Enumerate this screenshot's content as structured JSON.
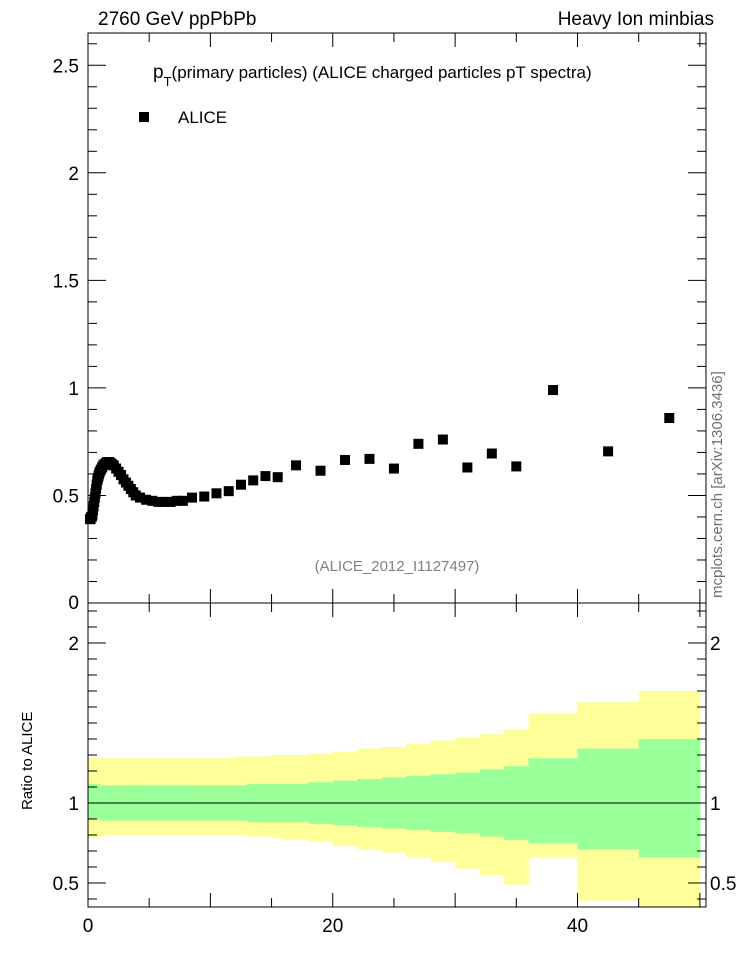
{
  "header": {
    "left": "2760 GeV ppPbPb",
    "right": "Heavy Ion minbias"
  },
  "side_credit": "mcplots.cern.ch [arXiv:1306.3436]",
  "chart_data": {
    "type": "scatter",
    "title_main": "p",
    "title_sub": "T",
    "title_rest": "(primary particles) (ALICE charged particles pT spectra)",
    "analysis_id": "(ALICE_2012_I1127497)",
    "legend": "ALICE",
    "colors": {
      "marker": "#000000",
      "band_outer": "#ffff99",
      "band_inner": "#99ff99",
      "line": "#000000"
    },
    "main_axis": {
      "xlim": [
        0,
        50.5
      ],
      "ylim": [
        0,
        2.65
      ],
      "y_ticks": [
        0.5,
        1,
        1.5,
        2,
        2.5
      ],
      "y_tick_labels": [
        "0.5",
        "1",
        "1.5",
        "2",
        "2.5"
      ],
      "y_zero_label": "0"
    },
    "series": [
      {
        "name": "ALICE",
        "x": [
          0.16,
          0.21,
          0.26,
          0.31,
          0.36,
          0.41,
          0.46,
          0.51,
          0.56,
          0.61,
          0.66,
          0.71,
          0.76,
          0.81,
          0.86,
          0.91,
          0.96,
          1.05,
          1.15,
          1.25,
          1.35,
          1.45,
          1.55,
          1.65,
          1.75,
          1.85,
          1.95,
          2.1,
          2.3,
          2.5,
          2.7,
          2.9,
          3.1,
          3.3,
          3.5,
          3.7,
          3.9,
          4.25,
          4.75,
          5.25,
          5.75,
          6.25,
          6.75,
          7.25,
          7.75,
          8.5,
          9.5,
          10.5,
          11.5,
          12.5,
          13.5,
          14.5,
          15.5,
          17,
          19,
          21,
          23,
          25,
          27,
          29,
          31,
          33,
          35,
          38,
          42.5,
          47.5
        ],
        "y": [
          0.39,
          0.39,
          0.4,
          0.4,
          0.41,
          0.43,
          0.45,
          0.47,
          0.49,
          0.51,
          0.53,
          0.55,
          0.57,
          0.58,
          0.59,
          0.6,
          0.61,
          0.62,
          0.63,
          0.64,
          0.645,
          0.65,
          0.655,
          0.655,
          0.655,
          0.65,
          0.645,
          0.64,
          0.625,
          0.61,
          0.595,
          0.575,
          0.56,
          0.545,
          0.53,
          0.515,
          0.5,
          0.49,
          0.48,
          0.475,
          0.47,
          0.47,
          0.47,
          0.475,
          0.475,
          0.49,
          0.495,
          0.51,
          0.52,
          0.55,
          0.57,
          0.59,
          0.585,
          0.64,
          0.615,
          0.665,
          0.67,
          0.625,
          0.74,
          0.76,
          0.63,
          0.695,
          0.635,
          0.99,
          0.705,
          0.86
        ]
      }
    ],
    "ratio_axis": {
      "label": "Ratio to ALICE",
      "xlim": [
        0,
        50.5
      ],
      "ylim": [
        0.35,
        2.25
      ],
      "y_ticks": [
        0.5,
        1,
        2
      ],
      "y_tick_labels": [
        "0.5",
        "1",
        "2"
      ],
      "x_ticks": [
        0,
        20,
        40
      ],
      "x_tick_labels": [
        "0",
        "20",
        "40"
      ]
    },
    "ratio_bands": {
      "edges": [
        0,
        1,
        2,
        3,
        4,
        5,
        6,
        7,
        8,
        9,
        10,
        11,
        12,
        13,
        14,
        15,
        16,
        18,
        20,
        22,
        24,
        26,
        28,
        30,
        32,
        34,
        36,
        40,
        45,
        50
      ],
      "outer_upper": [
        1.28,
        1.28,
        1.28,
        1.28,
        1.28,
        1.28,
        1.28,
        1.28,
        1.28,
        1.28,
        1.28,
        1.28,
        1.29,
        1.29,
        1.29,
        1.3,
        1.3,
        1.31,
        1.32,
        1.34,
        1.35,
        1.37,
        1.39,
        1.41,
        1.43,
        1.46,
        1.56,
        1.63,
        1.7
      ],
      "outer_lower": [
        0.78,
        0.8,
        0.8,
        0.8,
        0.8,
        0.8,
        0.8,
        0.8,
        0.8,
        0.8,
        0.8,
        0.8,
        0.8,
        0.79,
        0.79,
        0.78,
        0.77,
        0.76,
        0.73,
        0.71,
        0.69,
        0.66,
        0.63,
        0.59,
        0.55,
        0.49,
        0.66,
        0.39,
        0.34
      ],
      "inner_upper": [
        1.12,
        1.11,
        1.11,
        1.11,
        1.11,
        1.11,
        1.11,
        1.11,
        1.11,
        1.11,
        1.11,
        1.11,
        1.11,
        1.12,
        1.12,
        1.12,
        1.12,
        1.13,
        1.14,
        1.15,
        1.16,
        1.17,
        1.18,
        1.19,
        1.21,
        1.23,
        1.28,
        1.34,
        1.4
      ],
      "inner_lower": [
        0.9,
        0.89,
        0.89,
        0.89,
        0.89,
        0.89,
        0.89,
        0.89,
        0.89,
        0.89,
        0.89,
        0.89,
        0.89,
        0.88,
        0.88,
        0.88,
        0.88,
        0.87,
        0.86,
        0.85,
        0.84,
        0.83,
        0.82,
        0.81,
        0.79,
        0.77,
        0.75,
        0.71,
        0.66
      ]
    }
  }
}
